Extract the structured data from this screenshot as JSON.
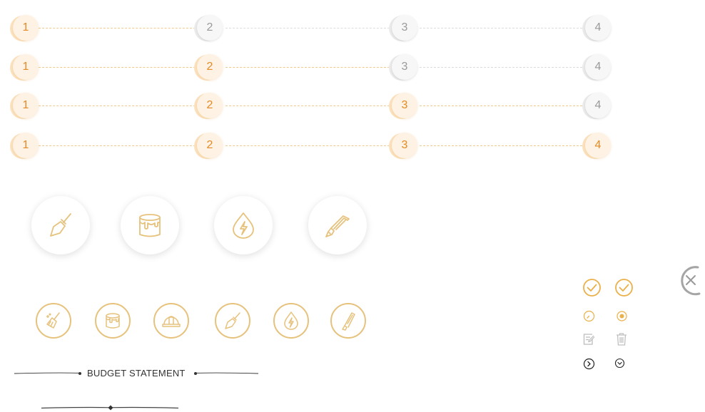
{
  "steppers": [
    {
      "active_count": 1,
      "labels": [
        "1",
        "2",
        "3",
        "4"
      ]
    },
    {
      "active_count": 2,
      "labels": [
        "1",
        "2",
        "3",
        "4"
      ]
    },
    {
      "active_count": 3,
      "labels": [
        "1",
        "2",
        "3",
        "4"
      ]
    },
    {
      "active_count": 4,
      "labels": [
        "1",
        "2",
        "3",
        "4"
      ]
    }
  ],
  "budget": {
    "title": "BUDGET STATEMENT"
  },
  "icons": {
    "big": [
      "trowel-icon",
      "paint-bucket-icon",
      "water-electric-icon",
      "saw-icon"
    ],
    "small": [
      "broom-icon",
      "paint-bucket-icon",
      "hard-hat-icon",
      "trowel-icon",
      "water-electric-icon",
      "saw-icon"
    ]
  },
  "colors": {
    "accent": "#e58a25",
    "gold": "#e6c27d",
    "inactive": "#9a9a9a"
  }
}
